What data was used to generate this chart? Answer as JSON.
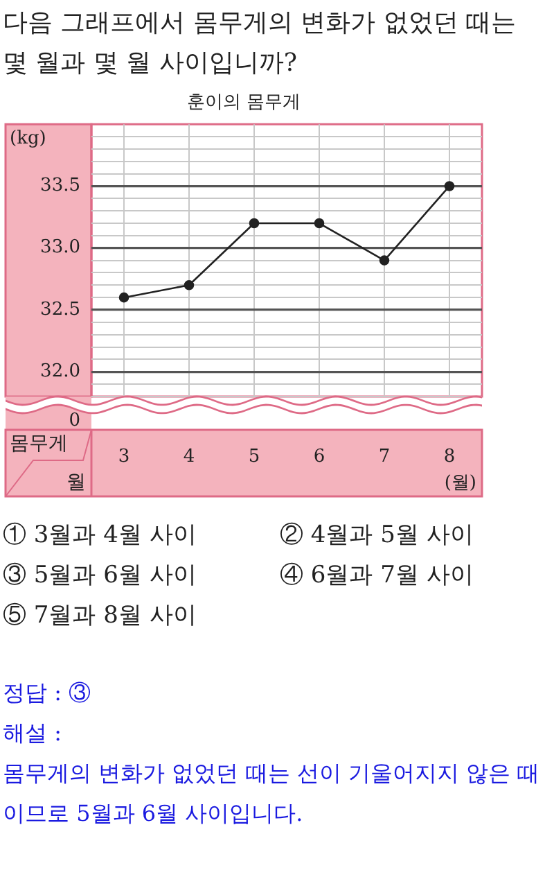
{
  "chart_data": {
    "type": "line",
    "title": "훈이의 몸무게",
    "xlabel": "(월)",
    "ylabel": "(kg)",
    "categories": [
      "3",
      "4",
      "5",
      "6",
      "7",
      "8"
    ],
    "series": [
      {
        "color": "#222222",
        "values": [
          32.6,
          32.7,
          33.2,
          33.2,
          32.9,
          33.5
        ]
      }
    ],
    "ylim": [
      31.8,
      34.0
    ],
    "yticks": [
      {
        "value": 31.8,
        "label": null
      },
      {
        "value": 31.9,
        "label": null
      },
      {
        "value": 32.0,
        "label": "32.0"
      },
      {
        "value": 32.1,
        "label": null
      },
      {
        "value": 32.2,
        "label": null
      },
      {
        "value": 32.3,
        "label": null
      },
      {
        "value": 32.4,
        "label": null
      },
      {
        "value": 32.5,
        "label": "32.5"
      },
      {
        "value": 32.6,
        "label": null
      },
      {
        "value": 32.7,
        "label": null
      },
      {
        "value": 32.8,
        "label": null
      },
      {
        "value": 32.9,
        "label": null
      },
      {
        "value": 33.0,
        "label": "33.0"
      },
      {
        "value": 33.1,
        "label": null
      },
      {
        "value": 33.2,
        "label": null
      },
      {
        "value": 33.3,
        "label": null
      },
      {
        "value": 33.4,
        "label": null
      },
      {
        "value": 33.5,
        "label": "33.5"
      },
      {
        "value": 33.6,
        "label": null
      },
      {
        "value": 33.7,
        "label": null
      },
      {
        "value": 33.8,
        "label": null
      },
      {
        "value": 33.9,
        "label": null
      }
    ],
    "grid": true,
    "marker": "circle",
    "line_style": "solid",
    "annotations": [
      "다음 그래프에서 몸무게의 변화가 없었던 때는 몇 월과 몇 월 사이입니까?",
      "① 3월과 4월 사이",
      "② 4월과 5월 사이",
      "③ 5월과 6월 사이",
      "④ 6월과 7월 사이",
      "⑤ 7월과 8월 사이",
      "정답 : ③",
      "해설 :",
      "몸무게의 변화가 없었던 때는 선이 기울어지지 않은 때이므로 5월과 6월 사이입니다.",
      "0",
      "몸무게",
      "월"
    ]
  }
}
